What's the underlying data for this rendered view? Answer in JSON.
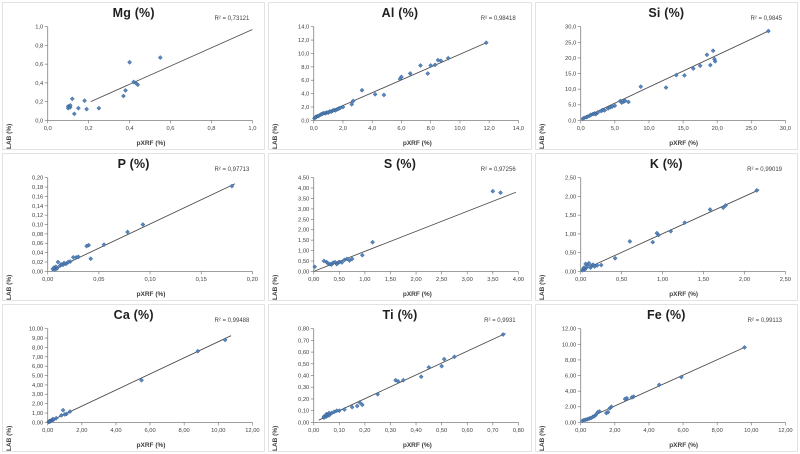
{
  "page": {
    "background": "#ffffff"
  },
  "colors": {
    "point_fill": "#4F81BD",
    "point_stroke": "#396293",
    "trendline": "#4d4d4d",
    "axis": "#7f7f7f",
    "tick_text": "#3f3f3f",
    "panel_border": "#e3e3e3"
  },
  "chart_data": [
    {
      "type": "scatter",
      "element": "Mg",
      "title": "Mg (%)",
      "r2_label": "R² = 0,73121",
      "xlabel": "pXRF (%)",
      "ylabel": "LAB (%)",
      "xlim": [
        0,
        1.0
      ],
      "ylim": [
        0,
        1.0
      ],
      "grid": false,
      "legend": "none",
      "xtick_labels": [
        "0,0",
        "0,2",
        "0,4",
        "0,6",
        "0,8",
        "1,0"
      ],
      "ytick_labels": [
        "0,0",
        "0,2",
        "0,4",
        "0,6",
        "0,8",
        "1,0"
      ],
      "trendline": [
        0.21,
        0.2,
        1.0,
        0.97
      ],
      "points": [
        [
          0.1,
          0.15
        ],
        [
          0.1,
          0.13
        ],
        [
          0.11,
          0.16
        ],
        [
          0.11,
          0.14
        ],
        [
          0.12,
          0.23
        ],
        [
          0.13,
          0.07
        ],
        [
          0.15,
          0.13
        ],
        [
          0.18,
          0.21
        ],
        [
          0.19,
          0.12
        ],
        [
          0.25,
          0.13
        ],
        [
          0.37,
          0.26
        ],
        [
          0.38,
          0.32
        ],
        [
          0.4,
          0.62
        ],
        [
          0.42,
          0.41
        ],
        [
          0.43,
          0.4
        ],
        [
          0.44,
          0.38
        ],
        [
          0.55,
          0.67
        ]
      ]
    },
    {
      "type": "scatter",
      "element": "Al",
      "title": "Al (%)",
      "r2_label": "R² = 0,98418",
      "xlabel": "pXRF (%)",
      "ylabel": "LAB (%)",
      "xlim": [
        0,
        14.0
      ],
      "ylim": [
        0,
        14.0
      ],
      "grid": false,
      "legend": "none",
      "xtick_labels": [
        "0,0",
        "2,0",
        "4,0",
        "6,0",
        "8,0",
        "10,0",
        "12,0",
        "14,0"
      ],
      "ytick_labels": [
        "0,0",
        "2,0",
        "4,0",
        "6,0",
        "8,0",
        "10,0",
        "12,0",
        "14,0"
      ],
      "trendline": [
        0.15,
        0.45,
        11.8,
        11.6
      ],
      "points": [
        [
          0.05,
          0.3
        ],
        [
          0.1,
          0.45
        ],
        [
          0.15,
          0.5
        ],
        [
          0.2,
          0.55
        ],
        [
          0.3,
          0.65
        ],
        [
          0.4,
          0.75
        ],
        [
          0.5,
          0.9
        ],
        [
          0.6,
          1.0
        ],
        [
          0.7,
          1.1
        ],
        [
          0.8,
          1.05
        ],
        [
          0.9,
          1.2
        ],
        [
          1.0,
          1.15
        ],
        [
          1.1,
          1.35
        ],
        [
          1.2,
          1.3
        ],
        [
          1.3,
          1.45
        ],
        [
          1.4,
          1.55
        ],
        [
          1.5,
          1.5
        ],
        [
          1.6,
          1.65
        ],
        [
          1.7,
          1.75
        ],
        [
          1.8,
          1.85
        ],
        [
          2.0,
          2.0
        ],
        [
          2.6,
          2.4
        ],
        [
          2.7,
          2.9
        ],
        [
          3.3,
          4.5
        ],
        [
          4.2,
          3.9
        ],
        [
          4.8,
          3.8
        ],
        [
          5.9,
          6.2
        ],
        [
          6.0,
          6.5
        ],
        [
          6.6,
          7.0
        ],
        [
          7.3,
          8.2
        ],
        [
          7.8,
          7.0
        ],
        [
          8.0,
          8.2
        ],
        [
          8.3,
          8.3
        ],
        [
          8.5,
          9.0
        ],
        [
          8.7,
          8.9
        ],
        [
          9.2,
          9.3
        ],
        [
          11.8,
          11.6
        ]
      ]
    },
    {
      "type": "scatter",
      "element": "Si",
      "title": "Si (%)",
      "r2_label": "R² = 0,9845",
      "xlabel": "pXRF (%)",
      "ylabel": "LAB (%)",
      "xlim": [
        0,
        30.0
      ],
      "ylim": [
        0,
        30.0
      ],
      "grid": false,
      "legend": "none",
      "xtick_labels": [
        "0,0",
        "5,0",
        "10,0",
        "15,0",
        "20,0",
        "25,0",
        "30,0"
      ],
      "ytick_labels": [
        "0,0",
        "5,0",
        "10,0",
        "15,0",
        "20,0",
        "25,0",
        "30,0"
      ],
      "trendline": [
        0.2,
        0.6,
        27.7,
        28.8
      ],
      "points": [
        [
          0.3,
          0.5
        ],
        [
          0.5,
          0.8
        ],
        [
          0.8,
          1.0
        ],
        [
          1.0,
          1.2
        ],
        [
          1.3,
          1.5
        ],
        [
          1.5,
          1.8
        ],
        [
          1.8,
          2.0
        ],
        [
          2.0,
          2.2
        ],
        [
          2.2,
          2.0
        ],
        [
          2.5,
          2.5
        ],
        [
          3.0,
          3.0
        ],
        [
          3.2,
          3.3
        ],
        [
          3.5,
          3.2
        ],
        [
          4.0,
          3.8
        ],
        [
          4.3,
          4.2
        ],
        [
          4.6,
          4.4
        ],
        [
          5.0,
          4.7
        ],
        [
          5.8,
          6.2
        ],
        [
          6.0,
          5.7
        ],
        [
          6.3,
          6.0
        ],
        [
          6.5,
          6.3
        ],
        [
          7.0,
          5.9
        ],
        [
          8.8,
          10.8
        ],
        [
          12.5,
          10.5
        ],
        [
          14.0,
          14.5
        ],
        [
          15.2,
          14.4
        ],
        [
          16.5,
          16.6
        ],
        [
          17.5,
          17.5
        ],
        [
          18.5,
          21.0
        ],
        [
          19.0,
          17.7
        ],
        [
          19.4,
          22.3
        ],
        [
          19.6,
          19.6
        ],
        [
          19.7,
          18.9
        ],
        [
          27.5,
          28.6
        ]
      ]
    },
    {
      "type": "scatter",
      "element": "P",
      "title": "P (%)",
      "r2_label": "R² = 0,97713",
      "xlabel": "pXRF (%)",
      "ylabel": "LAB (%)",
      "xlim": [
        0,
        0.2
      ],
      "ylim": [
        0,
        0.2
      ],
      "grid": false,
      "legend": "none",
      "xtick_labels": [
        "0,00",
        "0,05",
        "0,10",
        "0,15",
        "0,20"
      ],
      "ytick_labels": [
        "0,00",
        "0,02",
        "0,04",
        "0,06",
        "0,08",
        "0,10",
        "0,12",
        "0,14",
        "0,16",
        "0,18",
        "0,20"
      ],
      "trendline": [
        0.004,
        0.002,
        0.183,
        0.187
      ],
      "points": [
        [
          0.005,
          0.005
        ],
        [
          0.006,
          0.008
        ],
        [
          0.007,
          0.004
        ],
        [
          0.008,
          0.01
        ],
        [
          0.009,
          0.006
        ],
        [
          0.01,
          0.02
        ],
        [
          0.012,
          0.012
        ],
        [
          0.013,
          0.015
        ],
        [
          0.015,
          0.014
        ],
        [
          0.016,
          0.018
        ],
        [
          0.018,
          0.016
        ],
        [
          0.02,
          0.02
        ],
        [
          0.022,
          0.021
        ],
        [
          0.025,
          0.03
        ],
        [
          0.028,
          0.03
        ],
        [
          0.03,
          0.031
        ],
        [
          0.038,
          0.054
        ],
        [
          0.04,
          0.056
        ],
        [
          0.042,
          0.027
        ],
        [
          0.055,
          0.057
        ],
        [
          0.078,
          0.084
        ],
        [
          0.093,
          0.1
        ],
        [
          0.18,
          0.182
        ]
      ]
    },
    {
      "type": "scatter",
      "element": "S",
      "title": "S (%)",
      "r2_label": "R² = 0,97256",
      "xlabel": "pXRF (%)",
      "ylabel": "LAB (%)",
      "xlim": [
        0,
        4.0
      ],
      "ylim": [
        0,
        4.5
      ],
      "grid": false,
      "legend": "none",
      "xtick_labels": [
        "0,00",
        "0,50",
        "1,00",
        "1,50",
        "2,00",
        "2,50",
        "3,00",
        "3,50",
        "4,00"
      ],
      "ytick_labels": [
        "0,00",
        "0,50",
        "1,00",
        "1,50",
        "2,00",
        "2,50",
        "3,00",
        "3,50",
        "4,00",
        "4,50"
      ],
      "trendline": [
        0.0,
        0.0,
        3.95,
        3.8
      ],
      "points": [
        [
          0.02,
          0.22
        ],
        [
          0.2,
          0.5
        ],
        [
          0.25,
          0.45
        ],
        [
          0.28,
          0.38
        ],
        [
          0.32,
          0.35
        ],
        [
          0.35,
          0.33
        ],
        [
          0.38,
          0.42
        ],
        [
          0.42,
          0.44
        ],
        [
          0.45,
          0.35
        ],
        [
          0.48,
          0.42
        ],
        [
          0.5,
          0.45
        ],
        [
          0.55,
          0.43
        ],
        [
          0.6,
          0.55
        ],
        [
          0.65,
          0.6
        ],
        [
          0.7,
          0.52
        ],
        [
          0.75,
          0.6
        ],
        [
          0.95,
          0.78
        ],
        [
          1.15,
          1.4
        ],
        [
          3.5,
          3.85
        ],
        [
          3.65,
          3.78
        ]
      ]
    },
    {
      "type": "scatter",
      "element": "K",
      "title": "K (%)",
      "r2_label": "R² = 0,99019",
      "xlabel": "pXRF (%)",
      "ylabel": "LAB (%)",
      "xlim": [
        0,
        2.5
      ],
      "ylim": [
        0,
        2.5
      ],
      "grid": false,
      "legend": "none",
      "xtick_labels": [
        "0,00",
        "0,50",
        "1,00",
        "1,50",
        "2,00",
        "2,50"
      ],
      "ytick_labels": [
        "0,00",
        "0,50",
        "1,00",
        "1,50",
        "2,00",
        "2,50"
      ],
      "trendline": [
        0.0,
        0.01,
        2.18,
        2.18
      ],
      "points": [
        [
          0.02,
          0.03
        ],
        [
          0.03,
          0.06
        ],
        [
          0.04,
          0.1
        ],
        [
          0.05,
          0.05
        ],
        [
          0.06,
          0.2
        ],
        [
          0.07,
          0.1
        ],
        [
          0.08,
          0.16
        ],
        [
          0.1,
          0.22
        ],
        [
          0.12,
          0.1
        ],
        [
          0.13,
          0.15
        ],
        [
          0.15,
          0.18
        ],
        [
          0.17,
          0.13
        ],
        [
          0.2,
          0.16
        ],
        [
          0.25,
          0.17
        ],
        [
          0.42,
          0.35
        ],
        [
          0.6,
          0.8
        ],
        [
          0.88,
          0.78
        ],
        [
          0.93,
          1.02
        ],
        [
          0.95,
          0.97
        ],
        [
          1.1,
          1.07
        ],
        [
          1.27,
          1.3
        ],
        [
          1.58,
          1.65
        ],
        [
          1.74,
          1.7
        ],
        [
          1.77,
          1.76
        ],
        [
          2.15,
          2.16
        ]
      ]
    },
    {
      "type": "scatter",
      "element": "Ca",
      "title": "Ca (%)",
      "r2_label": "R² = 0,99488",
      "xlabel": "pXRF (%)",
      "ylabel": "LAB (%)",
      "xlim": [
        0,
        12.0
      ],
      "ylim": [
        0,
        10.0
      ],
      "grid": false,
      "legend": "none",
      "xtick_labels": [
        "0,00",
        "2,00",
        "4,00",
        "6,00",
        "8,00",
        "10,00",
        "12,00"
      ],
      "ytick_labels": [
        "0,00",
        "1,00",
        "2,00",
        "3,00",
        "4,00",
        "5,00",
        "6,00",
        "7,00",
        "8,00",
        "9,00",
        "10,00"
      ],
      "trendline": [
        0.0,
        0.02,
        10.75,
        9.25
      ],
      "points": [
        [
          0.05,
          0.05
        ],
        [
          0.08,
          0.1
        ],
        [
          0.1,
          0.08
        ],
        [
          0.12,
          0.15
        ],
        [
          0.15,
          0.12
        ],
        [
          0.2,
          0.2
        ],
        [
          0.25,
          0.22
        ],
        [
          0.3,
          0.35
        ],
        [
          0.35,
          0.3
        ],
        [
          0.5,
          0.45
        ],
        [
          0.8,
          0.75
        ],
        [
          0.9,
          1.3
        ],
        [
          1.0,
          0.85
        ],
        [
          1.1,
          0.9
        ],
        [
          1.3,
          1.15
        ],
        [
          5.5,
          4.5
        ],
        [
          8.8,
          7.6
        ],
        [
          10.4,
          8.8
        ]
      ]
    },
    {
      "type": "scatter",
      "element": "Ti",
      "title": "Ti (%)",
      "r2_label": "R² = 0,9931",
      "xlabel": "pXRF (%)",
      "ylabel": "LAB (%)",
      "xlim": [
        0,
        0.8
      ],
      "ylim": [
        0,
        0.8
      ],
      "grid": false,
      "legend": "none",
      "xtick_labels": [
        "0,00",
        "0,10",
        "0,20",
        "0,30",
        "0,40",
        "0,50",
        "0,60",
        "0,70",
        "0,80"
      ],
      "ytick_labels": [
        "0,00",
        "0,10",
        "0,20",
        "0,30",
        "0,40",
        "0,50",
        "0,60",
        "0,70",
        "0,80"
      ],
      "trendline": [
        0.02,
        0.02,
        0.75,
        0.76
      ],
      "points": [
        [
          0.04,
          0.04
        ],
        [
          0.04,
          0.05
        ],
        [
          0.05,
          0.05
        ],
        [
          0.05,
          0.06
        ],
        [
          0.05,
          0.07
        ],
        [
          0.06,
          0.06
        ],
        [
          0.06,
          0.08
        ],
        [
          0.07,
          0.08
        ],
        [
          0.08,
          0.09
        ],
        [
          0.09,
          0.1
        ],
        [
          0.1,
          0.1
        ],
        [
          0.12,
          0.11
        ],
        [
          0.15,
          0.13
        ],
        [
          0.17,
          0.14
        ],
        [
          0.18,
          0.17
        ],
        [
          0.19,
          0.15
        ],
        [
          0.25,
          0.24
        ],
        [
          0.32,
          0.36
        ],
        [
          0.33,
          0.35
        ],
        [
          0.35,
          0.36
        ],
        [
          0.42,
          0.39
        ],
        [
          0.45,
          0.47
        ],
        [
          0.5,
          0.48
        ],
        [
          0.51,
          0.54
        ],
        [
          0.55,
          0.56
        ],
        [
          0.74,
          0.75
        ]
      ]
    },
    {
      "type": "scatter",
      "element": "Fe",
      "title": "Fe (%)",
      "r2_label": "R² = 0,99113",
      "xlabel": "pXRF (%)",
      "ylabel": "LAB (%)",
      "xlim": [
        0,
        12.0
      ],
      "ylim": [
        0,
        12.0
      ],
      "grid": false,
      "legend": "none",
      "xtick_labels": [
        "0,00",
        "2,00",
        "4,00",
        "6,00",
        "8,00",
        "10,00",
        "12,00"
      ],
      "ytick_labels": [
        "0,00",
        "2,00",
        "4,00",
        "6,00",
        "8,00",
        "10,00",
        "12,00"
      ],
      "trendline": [
        0.05,
        0.18,
        9.7,
        9.7
      ],
      "points": [
        [
          0.1,
          0.2
        ],
        [
          0.2,
          0.3
        ],
        [
          0.3,
          0.35
        ],
        [
          0.4,
          0.4
        ],
        [
          0.5,
          0.5
        ],
        [
          0.6,
          0.55
        ],
        [
          0.7,
          0.7
        ],
        [
          0.8,
          0.8
        ],
        [
          0.9,
          1.0
        ],
        [
          1.0,
          1.3
        ],
        [
          1.1,
          1.4
        ],
        [
          1.5,
          1.2
        ],
        [
          1.6,
          1.3
        ],
        [
          1.7,
          1.8
        ],
        [
          1.8,
          2.0
        ],
        [
          2.6,
          3.0
        ],
        [
          2.7,
          3.1
        ],
        [
          3.0,
          3.2
        ],
        [
          3.1,
          3.3
        ],
        [
          4.6,
          4.8
        ],
        [
          5.9,
          5.8
        ],
        [
          9.6,
          9.6
        ]
      ]
    }
  ]
}
